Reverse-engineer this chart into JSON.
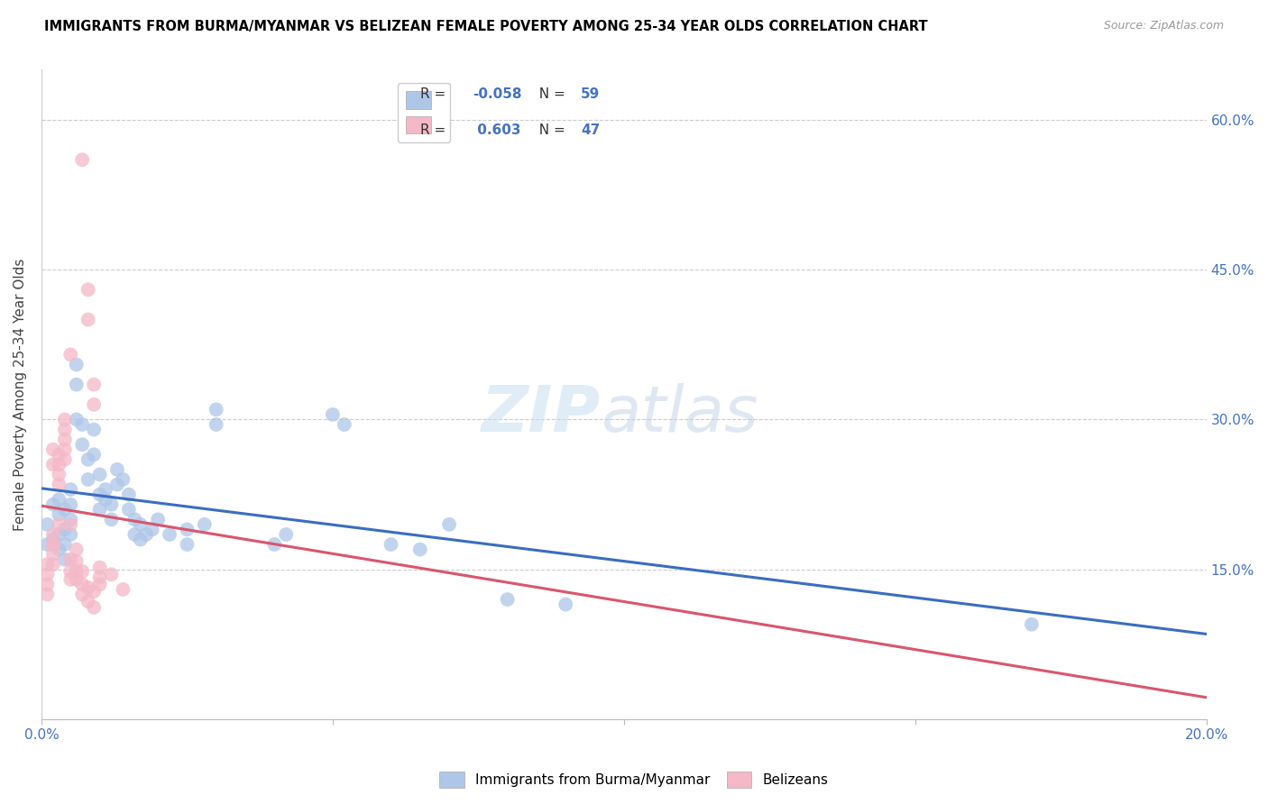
{
  "title": "IMMIGRANTS FROM BURMA/MYANMAR VS BELIZEAN FEMALE POVERTY AMONG 25-34 YEAR OLDS CORRELATION CHART",
  "source": "Source: ZipAtlas.com",
  "ylabel": "Female Poverty Among 25-34 Year Olds",
  "xlim": [
    0.0,
    0.2
  ],
  "ylim": [
    0.0,
    0.65
  ],
  "xticks": [
    0.0,
    0.05,
    0.1,
    0.15,
    0.2
  ],
  "xticklabels": [
    "0.0%",
    "",
    "",
    "",
    "20.0%"
  ],
  "yticks": [
    0.15,
    0.3,
    0.45,
    0.6
  ],
  "yticklabels_right": [
    "15.0%",
    "30.0%",
    "45.0%",
    "60.0%"
  ],
  "watermark_zip": "ZIP",
  "watermark_atlas": "atlas",
  "blue_color": "#aec6e8",
  "pink_color": "#f4b8c8",
  "blue_line_color": "#3b6dbf",
  "pink_line_color": "#d9566e",
  "pink_dashed_color": "#e8a0b0",
  "blue_scatter": [
    [
      0.001,
      0.195
    ],
    [
      0.001,
      0.175
    ],
    [
      0.002,
      0.18
    ],
    [
      0.002,
      0.215
    ],
    [
      0.003,
      0.22
    ],
    [
      0.003,
      0.205
    ],
    [
      0.003,
      0.185
    ],
    [
      0.003,
      0.17
    ],
    [
      0.004,
      0.21
    ],
    [
      0.004,
      0.19
    ],
    [
      0.004,
      0.175
    ],
    [
      0.004,
      0.16
    ],
    [
      0.005,
      0.23
    ],
    [
      0.005,
      0.215
    ],
    [
      0.005,
      0.2
    ],
    [
      0.005,
      0.185
    ],
    [
      0.006,
      0.355
    ],
    [
      0.006,
      0.335
    ],
    [
      0.006,
      0.3
    ],
    [
      0.007,
      0.295
    ],
    [
      0.007,
      0.275
    ],
    [
      0.008,
      0.26
    ],
    [
      0.008,
      0.24
    ],
    [
      0.009,
      0.29
    ],
    [
      0.009,
      0.265
    ],
    [
      0.01,
      0.245
    ],
    [
      0.01,
      0.225
    ],
    [
      0.01,
      0.21
    ],
    [
      0.011,
      0.23
    ],
    [
      0.011,
      0.22
    ],
    [
      0.012,
      0.215
    ],
    [
      0.012,
      0.2
    ],
    [
      0.013,
      0.25
    ],
    [
      0.013,
      0.235
    ],
    [
      0.014,
      0.24
    ],
    [
      0.015,
      0.225
    ],
    [
      0.015,
      0.21
    ],
    [
      0.016,
      0.2
    ],
    [
      0.016,
      0.185
    ],
    [
      0.017,
      0.195
    ],
    [
      0.017,
      0.18
    ],
    [
      0.018,
      0.185
    ],
    [
      0.019,
      0.19
    ],
    [
      0.02,
      0.2
    ],
    [
      0.022,
      0.185
    ],
    [
      0.025,
      0.175
    ],
    [
      0.025,
      0.19
    ],
    [
      0.028,
      0.195
    ],
    [
      0.03,
      0.295
    ],
    [
      0.03,
      0.31
    ],
    [
      0.04,
      0.175
    ],
    [
      0.042,
      0.185
    ],
    [
      0.05,
      0.305
    ],
    [
      0.052,
      0.295
    ],
    [
      0.06,
      0.175
    ],
    [
      0.065,
      0.17
    ],
    [
      0.07,
      0.195
    ],
    [
      0.08,
      0.12
    ],
    [
      0.09,
      0.115
    ],
    [
      0.17,
      0.095
    ]
  ],
  "pink_scatter": [
    [
      0.001,
      0.155
    ],
    [
      0.001,
      0.145
    ],
    [
      0.001,
      0.135
    ],
    [
      0.001,
      0.125
    ],
    [
      0.002,
      0.175
    ],
    [
      0.002,
      0.165
    ],
    [
      0.002,
      0.155
    ],
    [
      0.002,
      0.175
    ],
    [
      0.002,
      0.185
    ],
    [
      0.002,
      0.255
    ],
    [
      0.002,
      0.27
    ],
    [
      0.003,
      0.265
    ],
    [
      0.003,
      0.255
    ],
    [
      0.003,
      0.245
    ],
    [
      0.003,
      0.235
    ],
    [
      0.003,
      0.195
    ],
    [
      0.004,
      0.3
    ],
    [
      0.004,
      0.29
    ],
    [
      0.004,
      0.28
    ],
    [
      0.004,
      0.27
    ],
    [
      0.004,
      0.26
    ],
    [
      0.005,
      0.365
    ],
    [
      0.005,
      0.195
    ],
    [
      0.005,
      0.16
    ],
    [
      0.005,
      0.148
    ],
    [
      0.005,
      0.14
    ],
    [
      0.006,
      0.17
    ],
    [
      0.006,
      0.158
    ],
    [
      0.006,
      0.148
    ],
    [
      0.006,
      0.14
    ],
    [
      0.007,
      0.56
    ],
    [
      0.007,
      0.148
    ],
    [
      0.007,
      0.135
    ],
    [
      0.007,
      0.125
    ],
    [
      0.008,
      0.43
    ],
    [
      0.008,
      0.4
    ],
    [
      0.008,
      0.132
    ],
    [
      0.008,
      0.118
    ],
    [
      0.009,
      0.335
    ],
    [
      0.009,
      0.315
    ],
    [
      0.009,
      0.128
    ],
    [
      0.009,
      0.112
    ],
    [
      0.01,
      0.152
    ],
    [
      0.01,
      0.142
    ],
    [
      0.01,
      0.135
    ],
    [
      0.012,
      0.145
    ],
    [
      0.014,
      0.13
    ]
  ]
}
